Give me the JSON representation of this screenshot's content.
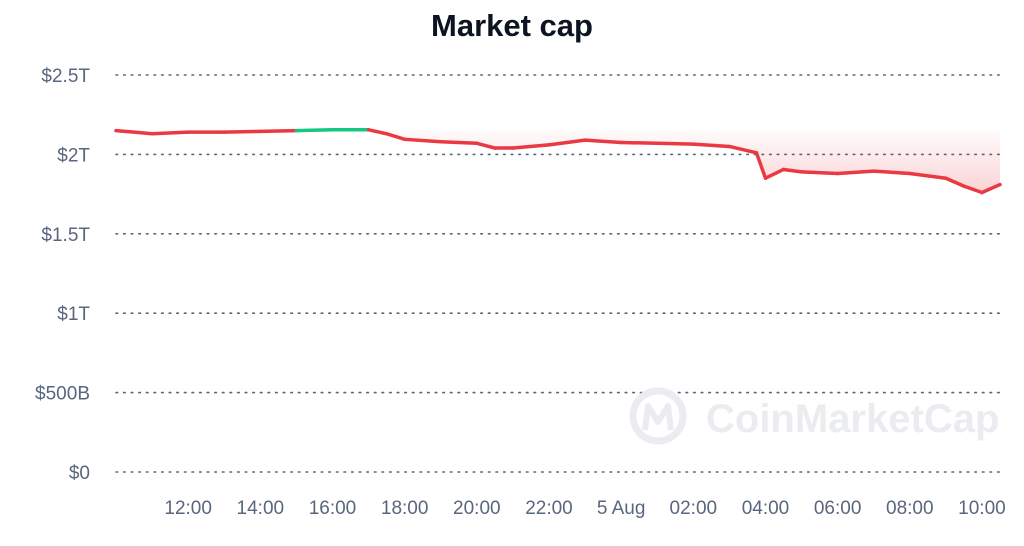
{
  "chart_data": {
    "type": "area",
    "title": "Market cap",
    "y_unit": "USD",
    "ylim": [
      0,
      2500000000000
    ],
    "y_ticks": [
      {
        "value": 0,
        "label": "$0"
      },
      {
        "value": 500000000000,
        "label": "$500B"
      },
      {
        "value": 1000000000000,
        "label": "$1T"
      },
      {
        "value": 1500000000000,
        "label": "$1.5T"
      },
      {
        "value": 2000000000000,
        "label": "$2T"
      },
      {
        "value": 2500000000000,
        "label": "$2.5T"
      }
    ],
    "xlim": [
      "4 Aug 10:00",
      "5 Aug 10:30"
    ],
    "x_ticks": [
      "12:00",
      "14:00",
      "16:00",
      "18:00",
      "20:00",
      "22:00",
      "5 Aug",
      "02:00",
      "04:00",
      "06:00",
      "08:00",
      "10:00"
    ],
    "grid": "horizontal dotted",
    "reference_value": 2150000000000,
    "colors": {
      "above_reference": "#16c784",
      "below_reference": "#ea3943",
      "grid": "#58667e",
      "text": "#58667e",
      "title": "#0d1421"
    },
    "series": [
      {
        "x": [
          "4 Aug 10:00",
          "4 Aug 11:00",
          "4 Aug 12:00",
          "4 Aug 13:00",
          "4 Aug 14:00",
          "4 Aug 15:00",
          "4 Aug 16:00",
          "4 Aug 17:00",
          "4 Aug 17:30",
          "4 Aug 18:00",
          "4 Aug 19:00",
          "4 Aug 20:00",
          "4 Aug 20:30",
          "4 Aug 21:00",
          "4 Aug 22:00",
          "4 Aug 23:00",
          "5 Aug 00:00",
          "5 Aug 01:00",
          "5 Aug 02:00",
          "5 Aug 03:00",
          "5 Aug 03:45",
          "5 Aug 04:00",
          "5 Aug 04:30",
          "5 Aug 05:00",
          "5 Aug 06:00",
          "5 Aug 07:00",
          "5 Aug 08:00",
          "5 Aug 09:00",
          "5 Aug 09:30",
          "5 Aug 10:00",
          "5 Aug 10:30"
        ],
        "y": [
          2150000000000,
          2130000000000,
          2140000000000,
          2140000000000,
          2145000000000,
          2150000000000,
          2155000000000,
          2155000000000,
          2130000000000,
          2095000000000,
          2080000000000,
          2070000000000,
          2040000000000,
          2040000000000,
          2060000000000,
          2090000000000,
          2075000000000,
          2070000000000,
          2065000000000,
          2050000000000,
          2010000000000,
          1850000000000,
          1905000000000,
          1890000000000,
          1880000000000,
          1895000000000,
          1880000000000,
          1850000000000,
          1800000000000,
          1760000000000,
          1810000000000
        ]
      }
    ],
    "watermark": "CoinMarketCap"
  }
}
